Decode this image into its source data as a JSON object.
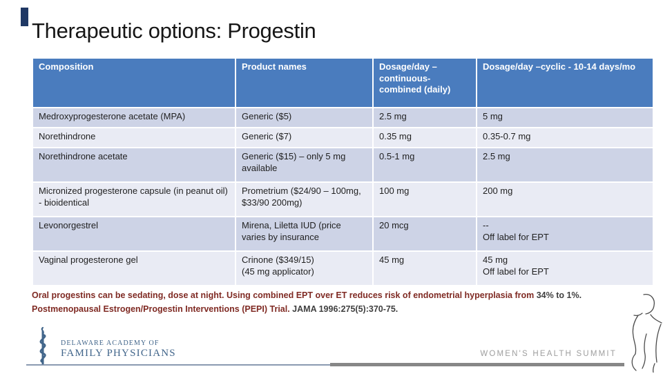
{
  "colors": {
    "header_bg": "#4a7cbe",
    "band_dark": "#cdd3e6",
    "band_light": "#e9ebf4",
    "note_red": "#7f2a23",
    "note_dark": "#3f3f3f",
    "accent_navy": "#1f3864",
    "logo_blue": "#41658a",
    "summit_gray": "#9e9e9e"
  },
  "slide": {
    "title": "Therapeutic options: Progestin"
  },
  "table": {
    "headers": [
      "Composition",
      "Product names",
      "Dosage/day – continuous-combined (daily)",
      "Dosage/day –cyclic - 10-14 days/mo"
    ],
    "rows": [
      [
        "Medroxyprogesterone acetate (MPA)",
        "Generic ($5)",
        "2.5 mg",
        "5 mg"
      ],
      [
        "Norethindrone",
        "Generic ($7)",
        "0.35 mg",
        "0.35-0.7 mg"
      ],
      [
        "Norethindrone acetate",
        "Generic ($15) – only 5 mg available",
        "0.5-1 mg",
        "2.5 mg"
      ],
      [
        "Micronized progesterone capsule (in peanut oil) - bioidentical",
        "Prometrium ($24/90 – 100mg, $33/90 200mg)",
        "100 mg",
        "200 mg"
      ],
      [
        "Levonorgestrel",
        "Mirena, Liletta IUD (price varies by insurance",
        "20 mcg",
        "--\nOff label for EPT"
      ],
      [
        "Vaginal progesterone gel",
        "Crinone ($349/15)\n(45 mg applicator)",
        "45 mg",
        "45 mg\nOff label for EPT"
      ]
    ]
  },
  "notes": {
    "lines": [
      {
        "segments": [
          {
            "text": "Oral progestins can be sedating, dose at night. Using combined EPT over ET reduces risk of endometrial hyperplasia from ",
            "color": "#7f2a23"
          },
          {
            "text": "34% to 1%.",
            "color": "#3f3f3f"
          }
        ]
      },
      {
        "segments": [
          {
            "text": "Postmenopausal Estrogen/Progestin Interventions (PEPI) Trial.  ",
            "color": "#7f2a23"
          },
          {
            "text": "JAMA 1996:275(5):370-75.",
            "color": "#3f3f3f"
          }
        ]
      }
    ]
  },
  "footer": {
    "logo_line1": "DELAWARE ACADEMY OF",
    "logo_line2": "FAMILY PHYSICIANS",
    "summit_label": "WOMEN'S HEALTH SUMMIT"
  }
}
